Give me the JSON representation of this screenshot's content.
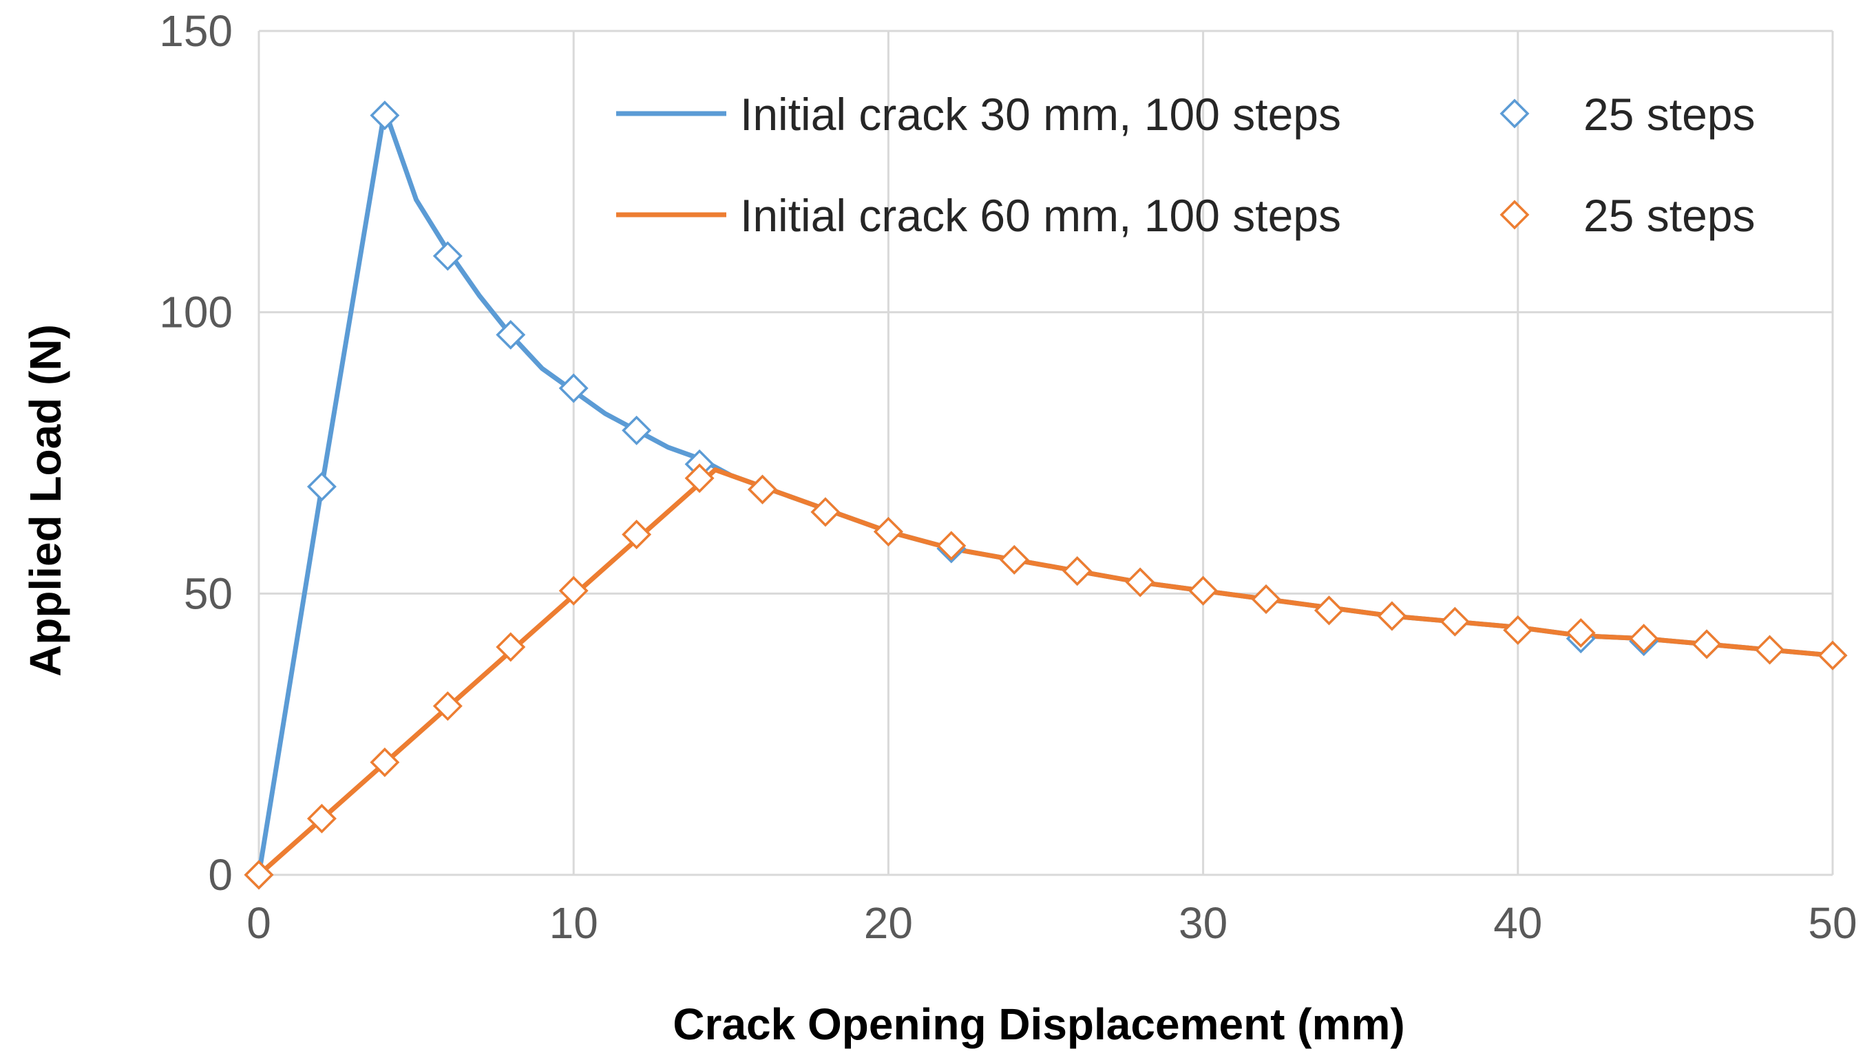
{
  "chart_data": {
    "type": "line",
    "xlabel": "Crack Opening Displacement (mm)",
    "ylabel": "Applied Load (N)",
    "xlim": [
      0,
      50
    ],
    "ylim": [
      0,
      150
    ],
    "xticks": [
      0,
      10,
      20,
      30,
      40,
      50
    ],
    "yticks": [
      0,
      50,
      100,
      150
    ],
    "grid": "both",
    "legend_position": "top-right",
    "series": [
      {
        "name": "Initial crack 30 mm, 100 steps",
        "style": "line",
        "color": "#5b9bd5",
        "x": [
          0,
          2,
          4,
          5,
          6,
          7,
          8,
          9,
          10,
          11,
          12,
          13,
          14,
          15,
          16,
          18,
          20,
          22,
          24,
          26,
          28,
          30,
          32,
          34,
          36,
          38,
          40,
          42,
          44,
          46,
          48,
          50
        ],
        "y": [
          0,
          69,
          136,
          120,
          111,
          103,
          96,
          90,
          86,
          82,
          79,
          76,
          74,
          71,
          69,
          65,
          61,
          58,
          56,
          54,
          52,
          50.5,
          49,
          47.5,
          46,
          45,
          44,
          42.5,
          42,
          41,
          40,
          39
        ]
      },
      {
        "name": "25 steps",
        "style": "marker",
        "marker": "diamond-open",
        "color": "#5b9bd5",
        "x": [
          0,
          2,
          4,
          6,
          8,
          10,
          12,
          14,
          16,
          18,
          20,
          22,
          24,
          26,
          28,
          30,
          32,
          34,
          36,
          38,
          40,
          42,
          44,
          46,
          48,
          50
        ],
        "y": [
          0,
          69,
          135,
          110,
          96,
          86.5,
          79,
          73,
          68.5,
          64.5,
          61,
          58,
          56,
          54,
          52,
          50.5,
          49,
          47,
          46,
          45,
          43.5,
          42,
          41.5,
          41,
          40,
          39
        ]
      },
      {
        "name": "Initial crack 60 mm, 100 steps",
        "style": "line",
        "color": "#ed7d31",
        "x": [
          0,
          14.5,
          16,
          18,
          20,
          22,
          24,
          26,
          28,
          30,
          32,
          34,
          36,
          38,
          40,
          42,
          44,
          46,
          48,
          50
        ],
        "y": [
          0,
          72,
          69,
          65,
          61,
          58,
          56,
          54,
          52,
          50.5,
          49,
          47.5,
          46,
          45,
          44,
          42.5,
          42,
          41,
          40,
          39
        ]
      },
      {
        "name": "25 steps",
        "style": "marker",
        "marker": "diamond-open",
        "color": "#ed7d31",
        "x": [
          0,
          2,
          4,
          6,
          8,
          10,
          12,
          14,
          16,
          18,
          20,
          22,
          24,
          26,
          28,
          30,
          32,
          34,
          36,
          38,
          40,
          42,
          44,
          46,
          48,
          50
        ],
        "y": [
          0,
          10,
          20,
          30,
          40.5,
          50.5,
          60.5,
          70.5,
          68.5,
          64.5,
          61,
          58.5,
          56,
          54,
          52,
          50.5,
          49,
          47,
          46,
          45,
          43.5,
          43,
          42,
          41,
          40,
          39
        ]
      }
    ]
  }
}
